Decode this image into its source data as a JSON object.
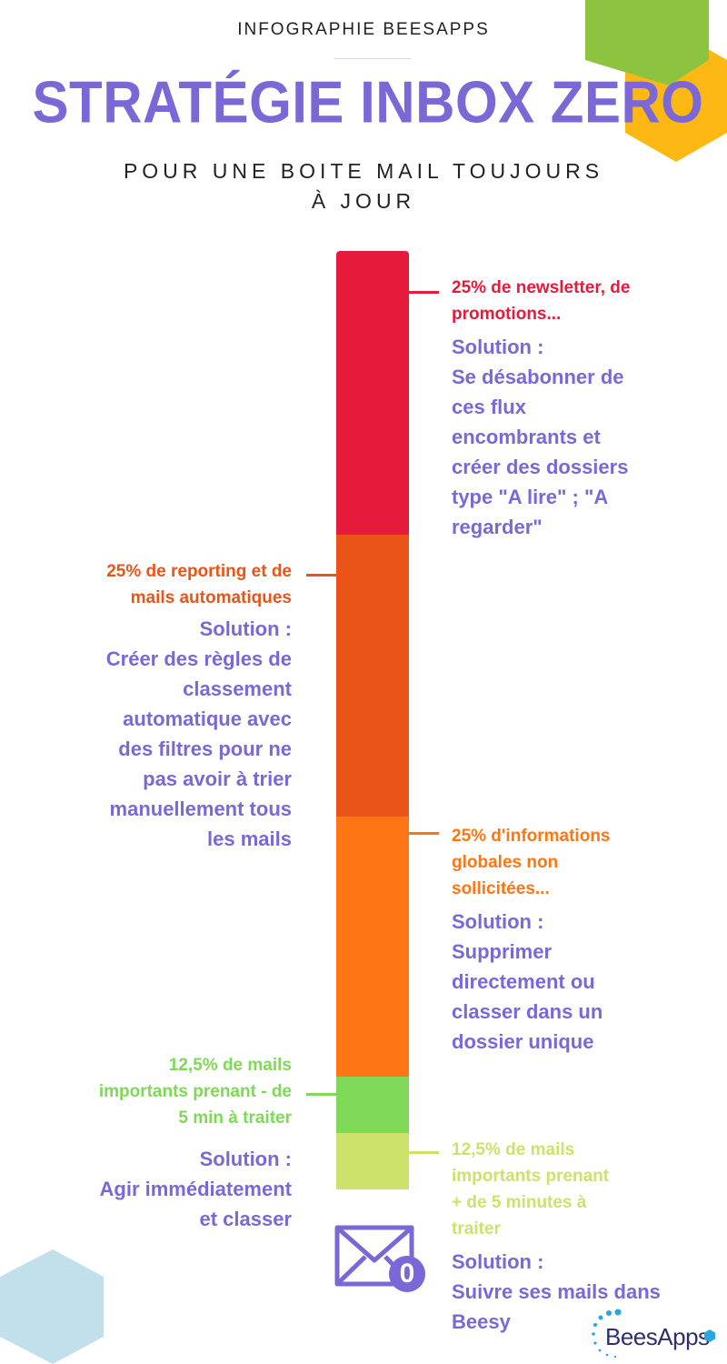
{
  "header": {
    "supertitle": "INFOGRAPHIE BEESAPPS",
    "title": "STRATÉGIE INBOX ZERO",
    "subtitle_line1": "POUR UNE BOITE MAIL TOUJOURS",
    "subtitle_line2": "À JOUR"
  },
  "colors": {
    "accent": "#7b68d6",
    "segment_1": "#e61b3b",
    "segment_2": "#ea5418",
    "segment_3": "#fd7613",
    "segment_4": "#7fd957",
    "segment_5": "#cce26a"
  },
  "segments": [
    {
      "share_percent": 25,
      "stat_lines": [
        "25% de newsletter, de",
        "promotions..."
      ],
      "solution_lines": [
        "Solution :",
        "Se désabonner de",
        "ces flux",
        "encombrants et",
        "créer des dossiers",
        "type \"A lire\" ; \"A",
        "regarder\""
      ]
    },
    {
      "share_percent": 25,
      "stat_lines": [
        "25% de reporting et de",
        "mails automatiques"
      ],
      "solution_lines": [
        "Solution :",
        "Créer des règles de",
        "classement",
        "automatique avec",
        "des filtres pour ne",
        "pas avoir à trier",
        "manuellement tous",
        "les mails"
      ]
    },
    {
      "share_percent": 25,
      "stat_lines": [
        "25% d'informations",
        "globales non",
        "sollicitées..."
      ],
      "solution_lines": [
        "Solution :",
        "Supprimer",
        "directement ou",
        "classer dans un",
        "dossier unique"
      ]
    },
    {
      "share_percent": 12.5,
      "stat_lines": [
        "12,5% de mails",
        "importants prenant - de",
        "5 min à traiter"
      ],
      "solution_lines": [
        "Solution :",
        "Agir immédiatement",
        "et classer"
      ]
    },
    {
      "share_percent": 12.5,
      "stat_lines": [
        "12,5% de mails",
        "importants prenant",
        "+ de 5 minutes à",
        "traiter"
      ],
      "solution_lines": [
        "Solution :",
        "Suivre ses mails dans",
        "Beesy"
      ]
    }
  ],
  "envelope": {
    "icon": "mail-envelope-icon",
    "badge": "0"
  },
  "logo": {
    "text": "BeesApps",
    "icon": "beesapps-logo-icon"
  },
  "decorations": [
    "green-hexagon",
    "yellow-hexagon",
    "blue-hexagon"
  ]
}
